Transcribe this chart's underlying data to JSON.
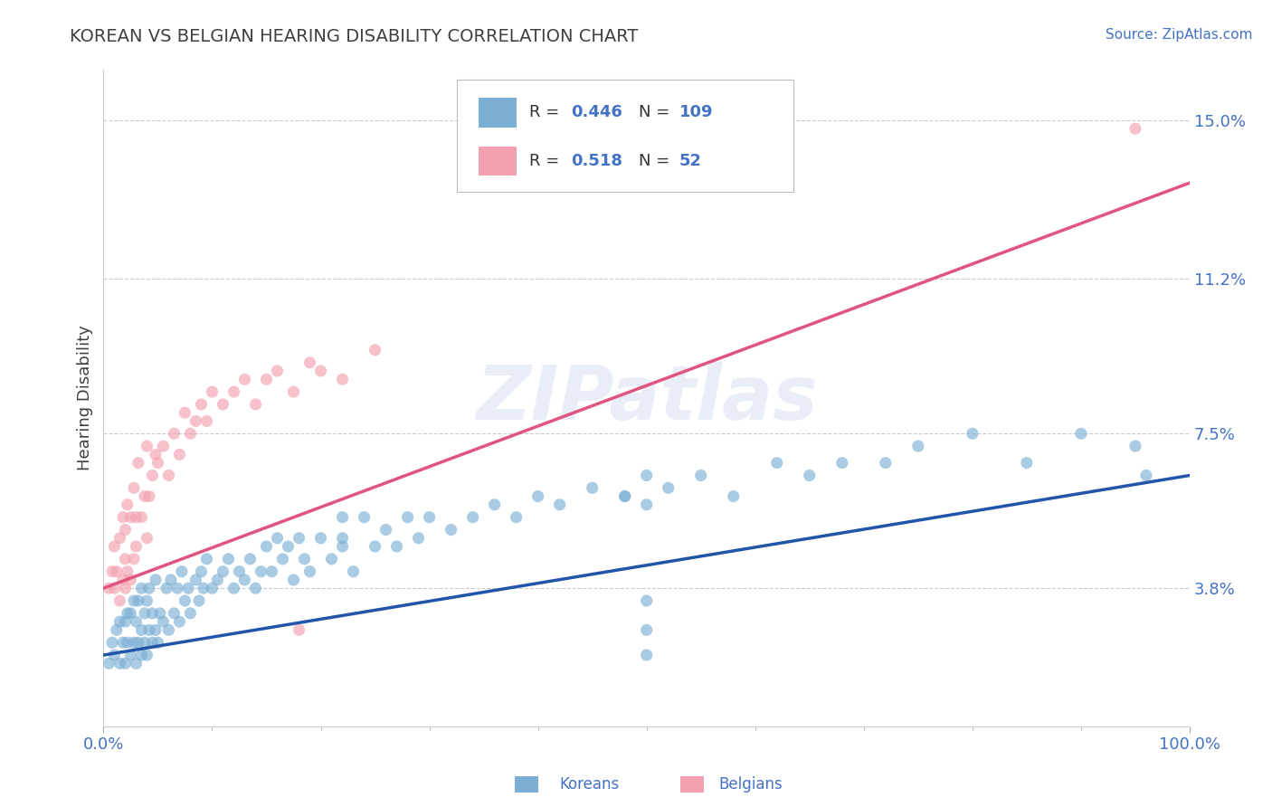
{
  "title": "KOREAN VS BELGIAN HEARING DISABILITY CORRELATION CHART",
  "source_text": "Source: ZipAtlas.com",
  "ylabel": "Hearing Disability",
  "xlim": [
    0,
    1.0
  ],
  "ylim": [
    0.005,
    0.162
  ],
  "yticks": [
    0.038,
    0.075,
    0.112,
    0.15
  ],
  "ytick_labels": [
    "3.8%",
    "7.5%",
    "11.2%",
    "15.0%"
  ],
  "xtick_labels": [
    "0.0%",
    "100.0%"
  ],
  "xticks": [
    0.0,
    1.0
  ],
  "korean_color": "#7bafd4",
  "belgian_color": "#f4a0b0",
  "korean_line_color": "#2255aa",
  "belgian_line_color": "#e05580",
  "R_korean": 0.446,
  "N_korean": 109,
  "R_belgian": 0.518,
  "N_belgian": 52,
  "watermark": "ZIPatlas",
  "title_color": "#404040",
  "axis_label_color": "#4472c4",
  "text_color_dark": "#333333",
  "background_color": "#ffffff",
  "legend_label_color": "#4472c4",
  "legend_n_color": "#4472c4",
  "korean_line_intercept": 0.022,
  "korean_line_slope": 0.043,
  "belgian_line_intercept": 0.038,
  "belgian_line_slope": 0.097,
  "korean_scatter_x": [
    0.005,
    0.008,
    0.01,
    0.012,
    0.015,
    0.015,
    0.018,
    0.02,
    0.02,
    0.022,
    0.022,
    0.025,
    0.025,
    0.028,
    0.028,
    0.03,
    0.03,
    0.032,
    0.032,
    0.035,
    0.035,
    0.035,
    0.038,
    0.038,
    0.04,
    0.04,
    0.042,
    0.042,
    0.045,
    0.045,
    0.048,
    0.048,
    0.05,
    0.052,
    0.055,
    0.058,
    0.06,
    0.062,
    0.065,
    0.068,
    0.07,
    0.072,
    0.075,
    0.078,
    0.08,
    0.085,
    0.088,
    0.09,
    0.092,
    0.095,
    0.1,
    0.105,
    0.11,
    0.115,
    0.12,
    0.125,
    0.13,
    0.135,
    0.14,
    0.145,
    0.15,
    0.155,
    0.16,
    0.165,
    0.17,
    0.175,
    0.18,
    0.185,
    0.19,
    0.2,
    0.21,
    0.22,
    0.23,
    0.24,
    0.25,
    0.26,
    0.27,
    0.28,
    0.29,
    0.3,
    0.32,
    0.34,
    0.36,
    0.38,
    0.4,
    0.42,
    0.45,
    0.48,
    0.5,
    0.52,
    0.55,
    0.58,
    0.62,
    0.65,
    0.68,
    0.72,
    0.75,
    0.8,
    0.85,
    0.9,
    0.95,
    0.96,
    0.5,
    0.48,
    0.5,
    0.5,
    0.5,
    0.22,
    0.22
  ],
  "korean_scatter_y": [
    0.02,
    0.025,
    0.022,
    0.028,
    0.02,
    0.03,
    0.025,
    0.02,
    0.03,
    0.025,
    0.032,
    0.022,
    0.032,
    0.025,
    0.035,
    0.02,
    0.03,
    0.025,
    0.035,
    0.022,
    0.028,
    0.038,
    0.025,
    0.032,
    0.022,
    0.035,
    0.028,
    0.038,
    0.025,
    0.032,
    0.028,
    0.04,
    0.025,
    0.032,
    0.03,
    0.038,
    0.028,
    0.04,
    0.032,
    0.038,
    0.03,
    0.042,
    0.035,
    0.038,
    0.032,
    0.04,
    0.035,
    0.042,
    0.038,
    0.045,
    0.038,
    0.04,
    0.042,
    0.045,
    0.038,
    0.042,
    0.04,
    0.045,
    0.038,
    0.042,
    0.048,
    0.042,
    0.05,
    0.045,
    0.048,
    0.04,
    0.05,
    0.045,
    0.042,
    0.05,
    0.045,
    0.048,
    0.042,
    0.055,
    0.048,
    0.052,
    0.048,
    0.055,
    0.05,
    0.055,
    0.052,
    0.055,
    0.058,
    0.055,
    0.06,
    0.058,
    0.062,
    0.06,
    0.058,
    0.062,
    0.065,
    0.06,
    0.068,
    0.065,
    0.068,
    0.068,
    0.072,
    0.075,
    0.068,
    0.075,
    0.072,
    0.065,
    0.065,
    0.06,
    0.022,
    0.028,
    0.035,
    0.05,
    0.055
  ],
  "belgian_scatter_x": [
    0.005,
    0.008,
    0.01,
    0.01,
    0.012,
    0.015,
    0.015,
    0.018,
    0.018,
    0.02,
    0.02,
    0.02,
    0.022,
    0.022,
    0.025,
    0.025,
    0.028,
    0.028,
    0.03,
    0.03,
    0.032,
    0.035,
    0.038,
    0.04,
    0.04,
    0.042,
    0.045,
    0.048,
    0.05,
    0.055,
    0.06,
    0.065,
    0.07,
    0.075,
    0.08,
    0.085,
    0.09,
    0.095,
    0.1,
    0.11,
    0.12,
    0.13,
    0.14,
    0.15,
    0.16,
    0.175,
    0.19,
    0.2,
    0.22,
    0.25,
    0.18,
    0.95
  ],
  "belgian_scatter_y": [
    0.038,
    0.042,
    0.038,
    0.048,
    0.042,
    0.035,
    0.05,
    0.04,
    0.055,
    0.038,
    0.045,
    0.052,
    0.042,
    0.058,
    0.04,
    0.055,
    0.045,
    0.062,
    0.048,
    0.055,
    0.068,
    0.055,
    0.06,
    0.05,
    0.072,
    0.06,
    0.065,
    0.07,
    0.068,
    0.072,
    0.065,
    0.075,
    0.07,
    0.08,
    0.075,
    0.078,
    0.082,
    0.078,
    0.085,
    0.082,
    0.085,
    0.088,
    0.082,
    0.088,
    0.09,
    0.085,
    0.092,
    0.09,
    0.088,
    0.095,
    0.028,
    0.148
  ]
}
